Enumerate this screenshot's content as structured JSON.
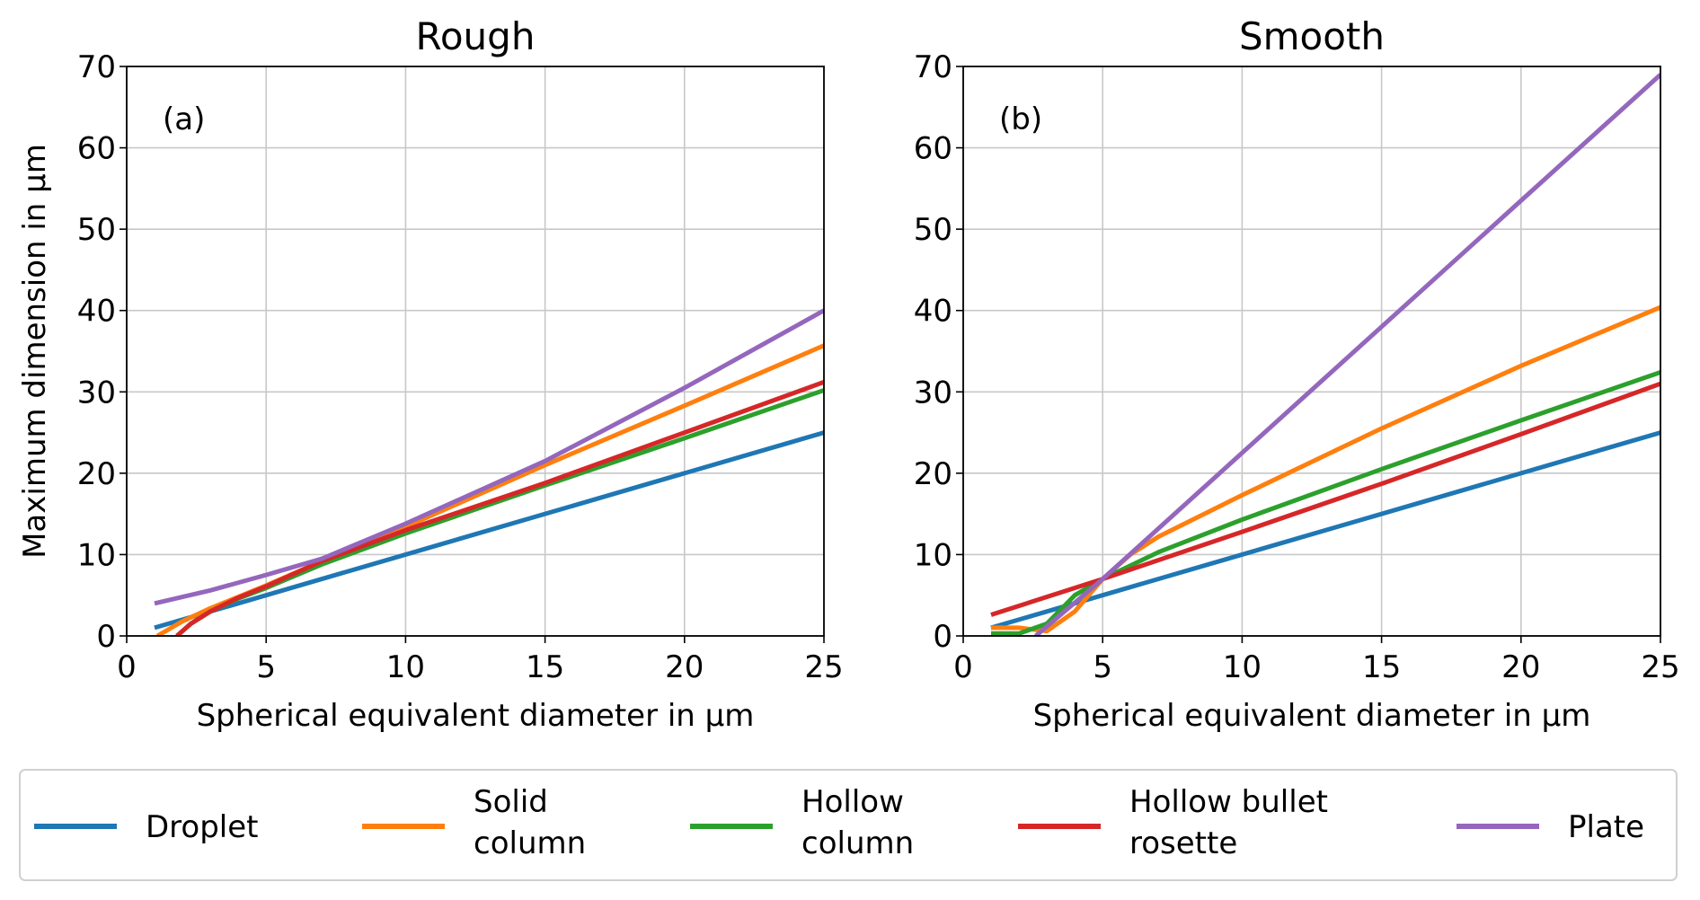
{
  "chart_data": [
    {
      "type": "line",
      "title": "Rough",
      "panel_label": "(a)",
      "xlabel": "Spherical equivalent diameter in µm",
      "ylabel": "Maximum dimension in µm",
      "xlim": [
        0,
        25
      ],
      "ylim": [
        0,
        70
      ],
      "xticks": [
        0,
        5,
        10,
        15,
        20,
        25
      ],
      "yticks": [
        0,
        10,
        20,
        30,
        40,
        50,
        60,
        70
      ],
      "grid": true,
      "series": [
        {
          "name": "Droplet",
          "color": "#1f77b4",
          "x": [
            1,
            25
          ],
          "y": [
            1,
            25
          ]
        },
        {
          "name": "Solid column",
          "color": "#ff7f0e",
          "x": [
            1.1,
            2,
            3,
            5,
            7,
            10,
            15,
            20,
            25
          ],
          "y": [
            0,
            1.8,
            3.4,
            6.2,
            9.2,
            13.4,
            21,
            28.3,
            35.7
          ]
        },
        {
          "name": "Hollow column",
          "color": "#2ca02c",
          "x": [
            1.8,
            2.3,
            3,
            4,
            5,
            7,
            10,
            15,
            20,
            25
          ],
          "y": [
            0,
            1.5,
            3,
            4.6,
            5.9,
            8.8,
            12.6,
            18.5,
            24.3,
            30.2
          ]
        },
        {
          "name": "Hollow bullet rosette",
          "color": "#d62728",
          "x": [
            1.8,
            2.3,
            3,
            4,
            5,
            7,
            10,
            15,
            20,
            25
          ],
          "y": [
            0,
            1.5,
            3,
            4.7,
            6.1,
            9.2,
            13,
            18.8,
            25,
            31.2
          ]
        },
        {
          "name": "Plate",
          "color": "#9467bd",
          "x": [
            1,
            3,
            5,
            7,
            10,
            15,
            20,
            25
          ],
          "y": [
            4,
            5.6,
            7.5,
            9.5,
            13.8,
            21.5,
            30.5,
            40
          ]
        }
      ]
    },
    {
      "type": "line",
      "title": "Smooth",
      "panel_label": "(b)",
      "xlabel": "Spherical equivalent diameter in µm",
      "ylabel": "",
      "xlim": [
        0,
        25
      ],
      "ylim": [
        0,
        70
      ],
      "xticks": [
        0,
        5,
        10,
        15,
        20,
        25
      ],
      "yticks": [
        0,
        10,
        20,
        30,
        40,
        50,
        60,
        70
      ],
      "grid": true,
      "series": [
        {
          "name": "Droplet",
          "color": "#1f77b4",
          "x": [
            1,
            25
          ],
          "y": [
            1,
            25
          ]
        },
        {
          "name": "Solid column",
          "color": "#ff7f0e",
          "x": [
            1,
            2,
            3,
            4,
            5,
            6,
            7,
            10,
            15,
            20,
            25
          ],
          "y": [
            1,
            1,
            0.6,
            3,
            7,
            10,
            12.2,
            17.3,
            25.5,
            33.2,
            40.4
          ]
        },
        {
          "name": "Hollow column",
          "color": "#2ca02c",
          "x": [
            1,
            2,
            3,
            4,
            5,
            7,
            10,
            15,
            20,
            25
          ],
          "y": [
            0.3,
            0.3,
            1.5,
            5,
            7,
            10.3,
            14.3,
            20.5,
            26.5,
            32.4
          ]
        },
        {
          "name": "Hollow bullet rosette",
          "color": "#d62728",
          "x": [
            1,
            5,
            10,
            15,
            20,
            25
          ],
          "y": [
            2.6,
            7,
            12.8,
            18.7,
            24.8,
            31
          ]
        },
        {
          "name": "Plate",
          "color": "#9467bd",
          "x": [
            2.6,
            5,
            10,
            15,
            20,
            25
          ],
          "y": [
            0,
            7,
            22.5,
            38,
            53.5,
            69
          ]
        }
      ]
    }
  ],
  "legend": {
    "placement": "bottom",
    "entries": [
      {
        "lines": [
          "Droplet"
        ],
        "color": "#1f77b4"
      },
      {
        "lines": [
          "Solid",
          "column"
        ],
        "color": "#ff7f0e"
      },
      {
        "lines": [
          "Hollow",
          "column"
        ],
        "color": "#2ca02c"
      },
      {
        "lines": [
          "Hollow bullet",
          "rosette"
        ],
        "color": "#d62728"
      },
      {
        "lines": [
          "Plate"
        ],
        "color": "#9467bd"
      }
    ]
  }
}
